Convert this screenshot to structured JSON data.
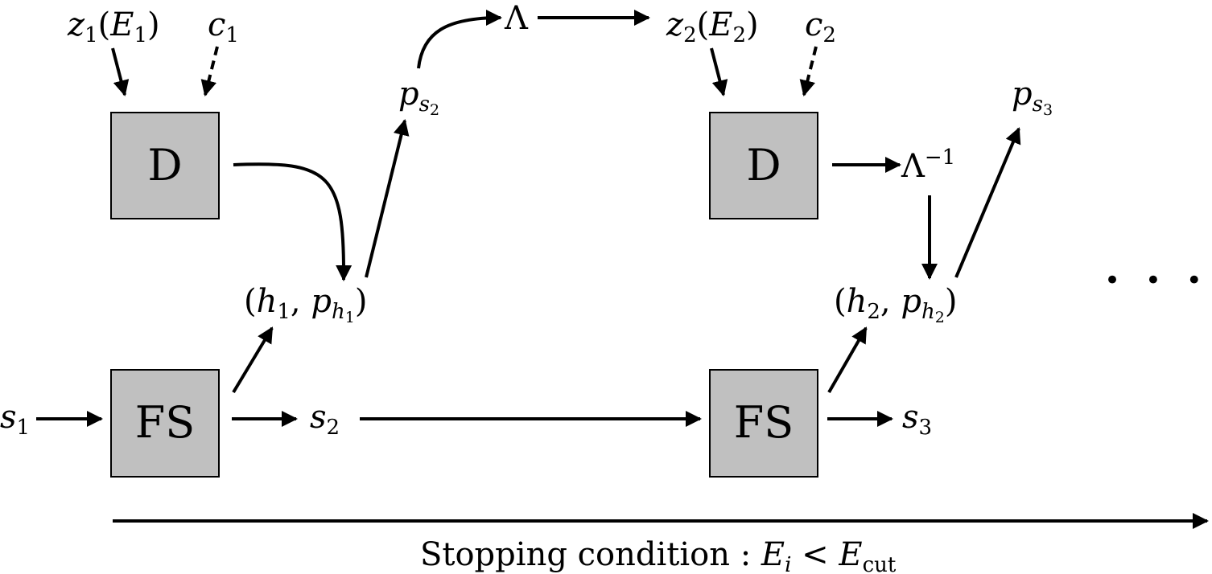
{
  "boxes": {
    "d1": "D",
    "d2": "D",
    "fs1": "FS",
    "fs2": "FS"
  },
  "labels": {
    "z1": {
      "var": "z",
      "sub": "1",
      "arg_var": "E",
      "arg_sub": "1"
    },
    "c1": {
      "var": "c",
      "sub": "1"
    },
    "z2": {
      "var": "z",
      "sub": "2",
      "arg_var": "E",
      "arg_sub": "2"
    },
    "c2": {
      "var": "c",
      "sub": "2"
    },
    "ps2": {
      "var": "p",
      "sub": "s",
      "subsub": "2"
    },
    "ps3": {
      "var": "p",
      "sub": "s",
      "subsub": "3"
    },
    "lambda": {
      "symbol": "Λ"
    },
    "lambda_inv": {
      "symbol": "Λ",
      "sup": "−1"
    },
    "hp1": {
      "h": "h",
      "h_sub": "1",
      "p": "p",
      "p_sub": "h",
      "p_subsub": "1"
    },
    "hp2": {
      "h": "h",
      "h_sub": "2",
      "p": "p",
      "p_sub": "h",
      "p_subsub": "2"
    },
    "s1": {
      "var": "s",
      "sub": "1"
    },
    "s2": {
      "var": "s",
      "sub": "2"
    },
    "s3": {
      "var": "s",
      "sub": "3"
    },
    "ellipsis": "• • •"
  },
  "caption": {
    "text": "Stopping condition : ",
    "lhs_var": "E",
    "lhs_sub": "i",
    "op": " < ",
    "rhs_var": "E",
    "rhs_sub": "cut"
  }
}
